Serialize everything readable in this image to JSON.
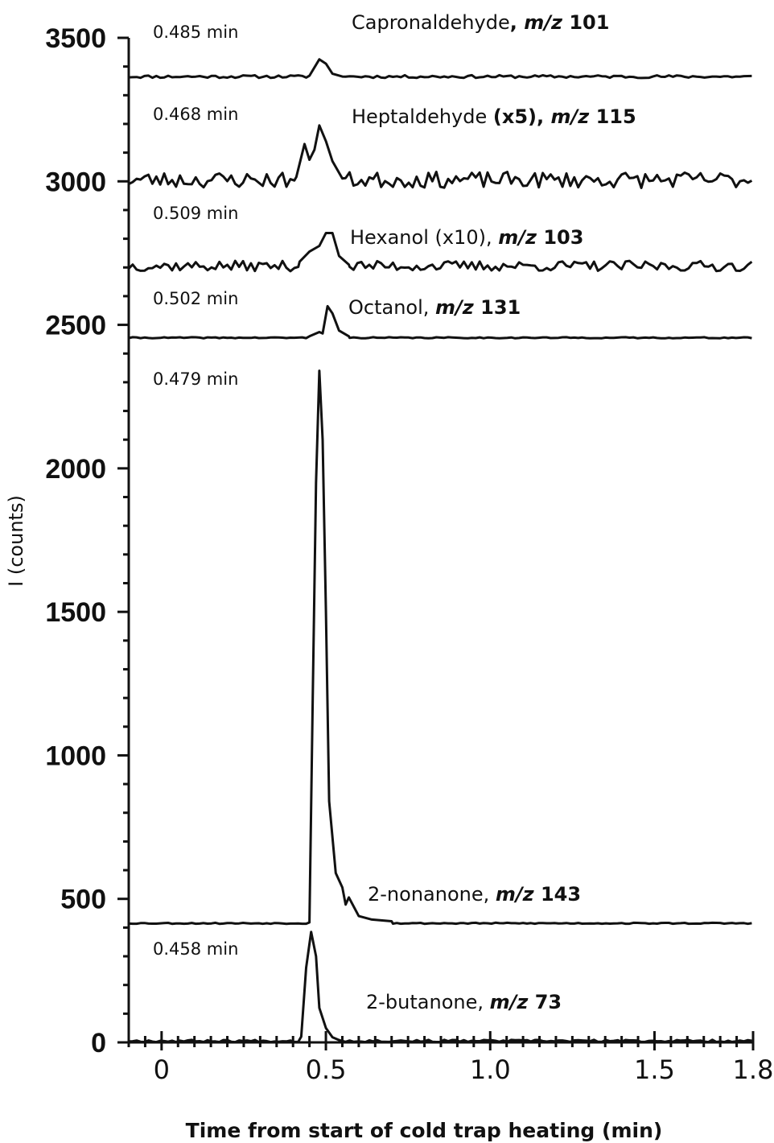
{
  "chart_data": {
    "type": "line",
    "title": "",
    "xlabel": "Time from start of cold trap heating (min)",
    "ylabel": "I (counts)",
    "xlim": [
      -0.1,
      1.8
    ],
    "ylim": [
      0,
      3500
    ],
    "x_ticks": [
      {
        "value": 0,
        "label": "0"
      },
      {
        "value": 0.5,
        "label": "0.5"
      },
      {
        "value": 1.0,
        "label": "1.0"
      },
      {
        "value": 1.5,
        "label": "1.5"
      },
      {
        "value": 1.8,
        "label": "1.8"
      }
    ],
    "y_ticks": [
      {
        "value": 0,
        "label": "0"
      },
      {
        "value": 500,
        "label": "500"
      },
      {
        "value": 1000,
        "label": "1000"
      },
      {
        "value": 1500,
        "label": "1500"
      },
      {
        "value": 2000,
        "label": "2000"
      },
      {
        "value": 2500,
        "label": "2500"
      },
      {
        "value": 3000,
        "label": "3000"
      },
      {
        "value": 3500,
        "label": "3500"
      }
    ],
    "grid": false,
    "series": [
      {
        "name": "Capronaldehyde",
        "baseline": 3365,
        "noise": 5,
        "seed": 11,
        "peak_time_label": "0.485 min",
        "label_parts": [
          {
            "t": "Capronaldehyde",
            "style": "normal"
          },
          {
            "t": ", ",
            "style": "bold"
          },
          {
            "t": "m/z",
            "style": "bolditalic"
          },
          {
            "t": " 101",
            "style": "bold"
          }
        ],
        "peaks": [
          [
            0.45,
            3368
          ],
          [
            0.48,
            3425
          ],
          [
            0.5,
            3410
          ],
          [
            0.52,
            3375
          ],
          [
            0.55,
            3365
          ]
        ]
      },
      {
        "name": "Heptaldehyde",
        "baseline": 3005,
        "noise": 28,
        "seed": 23,
        "peak_time_label": "0.468 min",
        "label_parts": [
          {
            "t": "Heptaldehyde ",
            "style": "normal"
          },
          {
            "t": "(x5), ",
            "style": "bold"
          },
          {
            "t": "m/z",
            "style": "bolditalic"
          },
          {
            "t": " 115",
            "style": "bold"
          }
        ],
        "peaks": [
          [
            0.41,
            3015
          ],
          [
            0.435,
            3130
          ],
          [
            0.45,
            3075
          ],
          [
            0.465,
            3110
          ],
          [
            0.48,
            3195
          ],
          [
            0.5,
            3140
          ],
          [
            0.52,
            3070
          ],
          [
            0.55,
            3010
          ]
        ]
      },
      {
        "name": "Hexanol",
        "baseline": 2705,
        "noise": 18,
        "seed": 37,
        "peak_time_label": "0.509 min",
        "label_parts": [
          {
            "t": "Hexanol (x10), ",
            "style": "normal"
          },
          {
            "t": "m/z",
            "style": "bolditalic"
          },
          {
            "t": " 103",
            "style": "bold"
          }
        ],
        "peaks": [
          [
            0.42,
            2720
          ],
          [
            0.45,
            2755
          ],
          [
            0.48,
            2775
          ],
          [
            0.5,
            2820
          ],
          [
            0.52,
            2820
          ],
          [
            0.54,
            2740
          ],
          [
            0.57,
            2710
          ]
        ]
      },
      {
        "name": "Octanol",
        "baseline": 2455,
        "noise": 2,
        "seed": 41,
        "peak_time_label": "0.502 min",
        "label_parts": [
          {
            "t": "Octanol, ",
            "style": "normal"
          },
          {
            "t": "m/z",
            "style": "bolditalic"
          },
          {
            "t": " 131",
            "style": "bold"
          }
        ],
        "peaks": [
          [
            0.45,
            2460
          ],
          [
            0.48,
            2475
          ],
          [
            0.49,
            2470
          ],
          [
            0.505,
            2565
          ],
          [
            0.52,
            2540
          ],
          [
            0.54,
            2480
          ],
          [
            0.57,
            2460
          ]
        ]
      },
      {
        "name": "2-nonanone",
        "baseline": 415,
        "noise": 2,
        "seed": 53,
        "peak_time_label": "0.479 min",
        "label_parts": [
          {
            "t": "2-nonanone, ",
            "style": "normal"
          },
          {
            "t": "m/z",
            "style": "bolditalic"
          },
          {
            "t": " 143",
            "style": "bold"
          }
        ],
        "peaks": [
          [
            0.45,
            418
          ],
          [
            0.46,
            1200
          ],
          [
            0.47,
            1950
          ],
          [
            0.48,
            2340
          ],
          [
            0.49,
            2100
          ],
          [
            0.5,
            1500
          ],
          [
            0.51,
            840
          ],
          [
            0.53,
            590
          ],
          [
            0.55,
            540
          ],
          [
            0.56,
            480
          ],
          [
            0.57,
            505
          ],
          [
            0.6,
            440
          ],
          [
            0.64,
            428
          ],
          [
            0.7,
            422
          ]
        ]
      },
      {
        "name": "2-butanone",
        "baseline": 5,
        "noise": 4,
        "seed": 67,
        "peak_time_label": "0.458 min",
        "label_parts": [
          {
            "t": "2-butanone, ",
            "style": "normal"
          },
          {
            "t": "m/z",
            "style": "bolditalic"
          },
          {
            "t": " 73",
            "style": "bold"
          }
        ],
        "peaks": [
          [
            0.425,
            20
          ],
          [
            0.44,
            260
          ],
          [
            0.455,
            385
          ],
          [
            0.47,
            300
          ],
          [
            0.48,
            120
          ],
          [
            0.5,
            50
          ],
          [
            0.52,
            18
          ],
          [
            0.54,
            8
          ]
        ]
      }
    ]
  }
}
